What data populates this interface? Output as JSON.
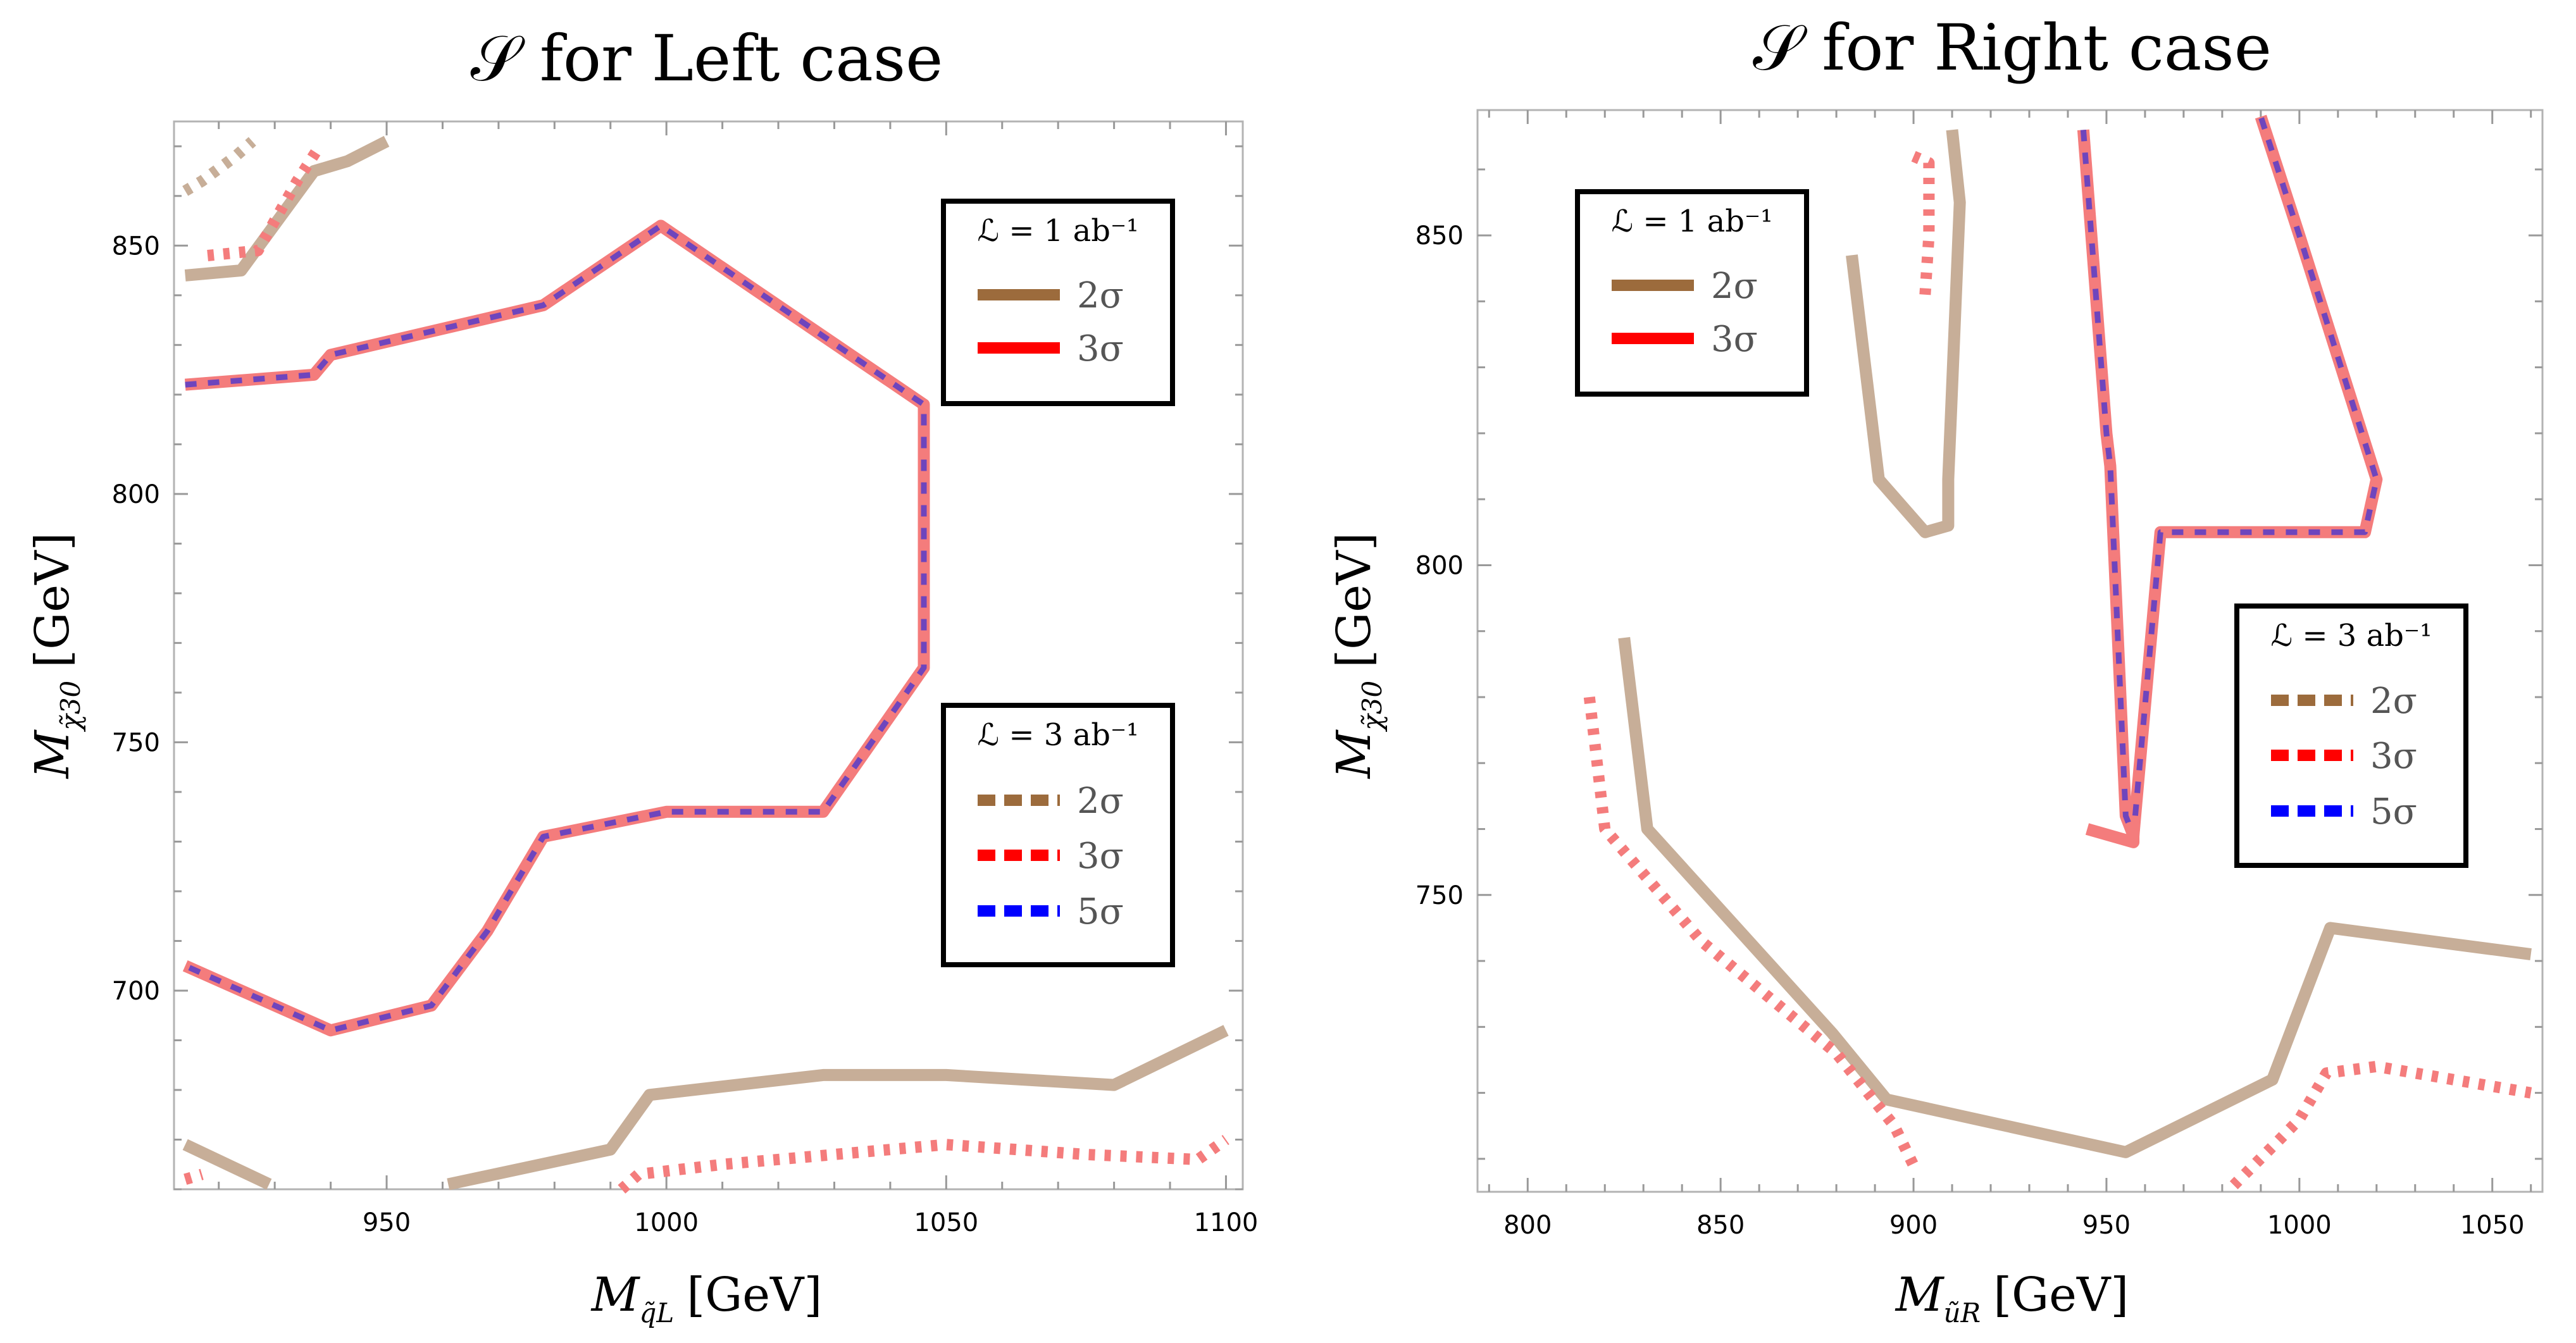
{
  "colors": {
    "brown": "#9c6b3c",
    "brown_faded": "#c7ae98",
    "red": "#ff0000",
    "red_faded": "#f47c7c",
    "blue": "#0000ff",
    "purple": "#6e45bd"
  },
  "chart_data": [
    {
      "type": "line",
      "title": "𝒮 for Left case",
      "xlabel": "M",
      "xlabel_sub": "q̃L",
      "xlabel_unit": "[GeV]",
      "ylabel": "M",
      "ylabel_sub": "χ̃30",
      "ylabel_unit": "[GeV]",
      "xlim": [
        912,
        1103
      ],
      "ylim": [
        660,
        875
      ],
      "xticks": [
        950,
        1000,
        1050,
        1100
      ],
      "yticks": [
        700,
        750,
        800,
        850
      ],
      "legends": [
        {
          "title": "ℒ = 1 ab⁻¹",
          "entries": [
            {
              "label": "2σ",
              "color": "#9c6b3c",
              "style": "solid"
            },
            {
              "label": "3σ",
              "color": "#ff0000",
              "style": "solid"
            }
          ]
        },
        {
          "title": "ℒ = 3 ab⁻¹",
          "entries": [
            {
              "label": "2σ",
              "color": "#9c6b3c",
              "style": "dashed"
            },
            {
              "label": "3σ",
              "color": "#ff0000",
              "style": "dashed"
            },
            {
              "label": "5σ",
              "color": "#0000ff",
              "style": "dashed"
            }
          ]
        }
      ],
      "series": [
        {
          "color": "#c7ae98",
          "style": "solid",
          "points": [
            [
              914,
              844
            ],
            [
              924,
              845
            ],
            [
              937,
              865
            ],
            [
              943,
              867
            ],
            [
              950,
              871
            ]
          ]
        },
        {
          "color": "#c7ae98",
          "style": "dotted",
          "points": [
            [
              914,
              861
            ],
            [
              917,
              863
            ],
            [
              923,
              868
            ],
            [
              926,
              871
            ]
          ]
        },
        {
          "color": "#f47c7c",
          "style": "dotted",
          "points": [
            [
              918,
              848
            ],
            [
              927,
              849
            ],
            [
              934,
              863
            ],
            [
              938,
              870
            ]
          ]
        },
        {
          "color": "#f47c7c",
          "style": "solid",
          "points": [
            [
              914,
              822
            ],
            [
              937,
              824
            ],
            [
              940,
              828
            ],
            [
              978,
              838
            ],
            [
              999,
              854
            ],
            [
              1046,
              818
            ],
            [
              1046,
              765
            ],
            [
              1028,
              736
            ],
            [
              1000,
              736
            ],
            [
              978,
              731
            ],
            [
              968,
              712
            ],
            [
              958,
              697
            ],
            [
              940,
              692
            ],
            [
              914,
              705
            ]
          ]
        },
        {
          "color": "#6e45bd",
          "style": "dashed",
          "points": [
            [
              914,
              822
            ],
            [
              937,
              824
            ],
            [
              940,
              828
            ],
            [
              978,
              838
            ],
            [
              999,
              854
            ],
            [
              1046,
              818
            ],
            [
              1046,
              765
            ],
            [
              1028,
              736
            ],
            [
              1000,
              736
            ],
            [
              978,
              731
            ],
            [
              968,
              712
            ],
            [
              958,
              697
            ],
            [
              940,
              692
            ],
            [
              914,
              705
            ]
          ]
        },
        {
          "color": "#c7ae98",
          "style": "solid",
          "points": [
            [
              914,
              669
            ],
            [
              929,
              661
            ]
          ]
        },
        {
          "color": "#c7ae98",
          "style": "solid",
          "points": [
            [
              961,
              661
            ],
            [
              990,
              668
            ],
            [
              997,
              679
            ],
            [
              1028,
              683
            ],
            [
              1050,
              683
            ],
            [
              1080,
              681
            ],
            [
              1100,
              692
            ]
          ]
        },
        {
          "color": "#f47c7c",
          "style": "dotted",
          "points": [
            [
              914,
              662
            ],
            [
              917,
              663
            ]
          ]
        },
        {
          "color": "#f47c7c",
          "style": "dotted",
          "points": [
            [
              992,
              660
            ],
            [
              995,
              663
            ],
            [
              1010,
              665
            ],
            [
              1050,
              669
            ],
            [
              1075,
              667
            ],
            [
              1095,
              666
            ],
            [
              1100,
              670
            ]
          ]
        }
      ]
    },
    {
      "type": "line",
      "title": "𝒮 for Right case",
      "xlabel": "M",
      "xlabel_sub": "ũR",
      "xlabel_unit": "[GeV]",
      "ylabel": "M",
      "ylabel_sub": "χ̃30",
      "ylabel_unit": "[GeV]",
      "xlim": [
        787,
        1063
      ],
      "ylim": [
        705,
        869
      ],
      "xticks": [
        800,
        850,
        900,
        950,
        1000,
        1050
      ],
      "yticks": [
        750,
        800,
        850
      ],
      "legends": [
        {
          "title": "ℒ = 1 ab⁻¹",
          "entries": [
            {
              "label": "2σ",
              "color": "#9c6b3c",
              "style": "solid"
            },
            {
              "label": "3σ",
              "color": "#ff0000",
              "style": "solid"
            }
          ]
        },
        {
          "title": "ℒ = 3 ab⁻¹",
          "entries": [
            {
              "label": "2σ",
              "color": "#9c6b3c",
              "style": "dashed"
            },
            {
              "label": "3σ",
              "color": "#ff0000",
              "style": "dashed"
            },
            {
              "label": "5σ",
              "color": "#0000ff",
              "style": "dashed"
            }
          ]
        }
      ],
      "series": [
        {
          "color": "#c7ae98",
          "style": "solid",
          "points": [
            [
              884,
              847
            ],
            [
              891,
              813
            ],
            [
              903,
              805
            ],
            [
              909,
              806
            ],
            [
              909,
              813
            ],
            [
              912,
              855
            ],
            [
              910,
              866
            ]
          ]
        },
        {
          "color": "#f47c7c",
          "style": "dotted",
          "points": [
            [
              900,
              862
            ],
            [
              904,
              861
            ],
            [
              904,
              850
            ],
            [
              903,
              841
            ]
          ]
        },
        {
          "color": "#f47c7c",
          "style": "solid",
          "points": [
            [
              944,
              866
            ],
            [
              950,
              820
            ],
            [
              951,
              815
            ],
            [
              955,
              762
            ],
            [
              957,
              759
            ],
            [
              964,
              805
            ],
            [
              1017,
              805
            ],
            [
              1020,
              813
            ],
            [
              1000,
              850
            ],
            [
              990,
              868
            ]
          ]
        },
        {
          "color": "#6e45bd",
          "style": "dashed",
          "points": [
            [
              944,
              866
            ],
            [
              950,
              820
            ],
            [
              951,
              815
            ],
            [
              955,
              762
            ],
            [
              957,
              759
            ],
            [
              964,
              805
            ],
            [
              1017,
              805
            ],
            [
              1020,
              813
            ],
            [
              1000,
              850
            ],
            [
              990,
              868
            ]
          ]
        },
        {
          "color": "#f47c7c",
          "style": "solid",
          "points": [
            [
              945,
              760
            ],
            [
              957,
              758
            ],
            [
              957,
              761
            ]
          ]
        },
        {
          "color": "#c7ae98",
          "style": "solid",
          "points": [
            [
              825,
              789
            ],
            [
              831,
              760
            ],
            [
              879,
              729
            ],
            [
              893,
              719
            ],
            [
              955,
              711
            ],
            [
              993,
              722
            ],
            [
              1008,
              745
            ],
            [
              1060,
              741
            ]
          ]
        },
        {
          "color": "#f47c7c",
          "style": "dotted",
          "points": [
            [
              816,
              780
            ],
            [
              820,
              760
            ],
            [
              845,
              743
            ],
            [
              880,
              726
            ],
            [
              895,
              715
            ],
            [
              900,
              709
            ]
          ]
        },
        {
          "color": "#f47c7c",
          "style": "dotted",
          "points": [
            [
              983,
              706
            ],
            [
              995,
              713
            ],
            [
              1000,
              716
            ],
            [
              1007,
              723
            ],
            [
              1020,
              724
            ],
            [
              1060,
              720
            ]
          ]
        }
      ]
    }
  ]
}
